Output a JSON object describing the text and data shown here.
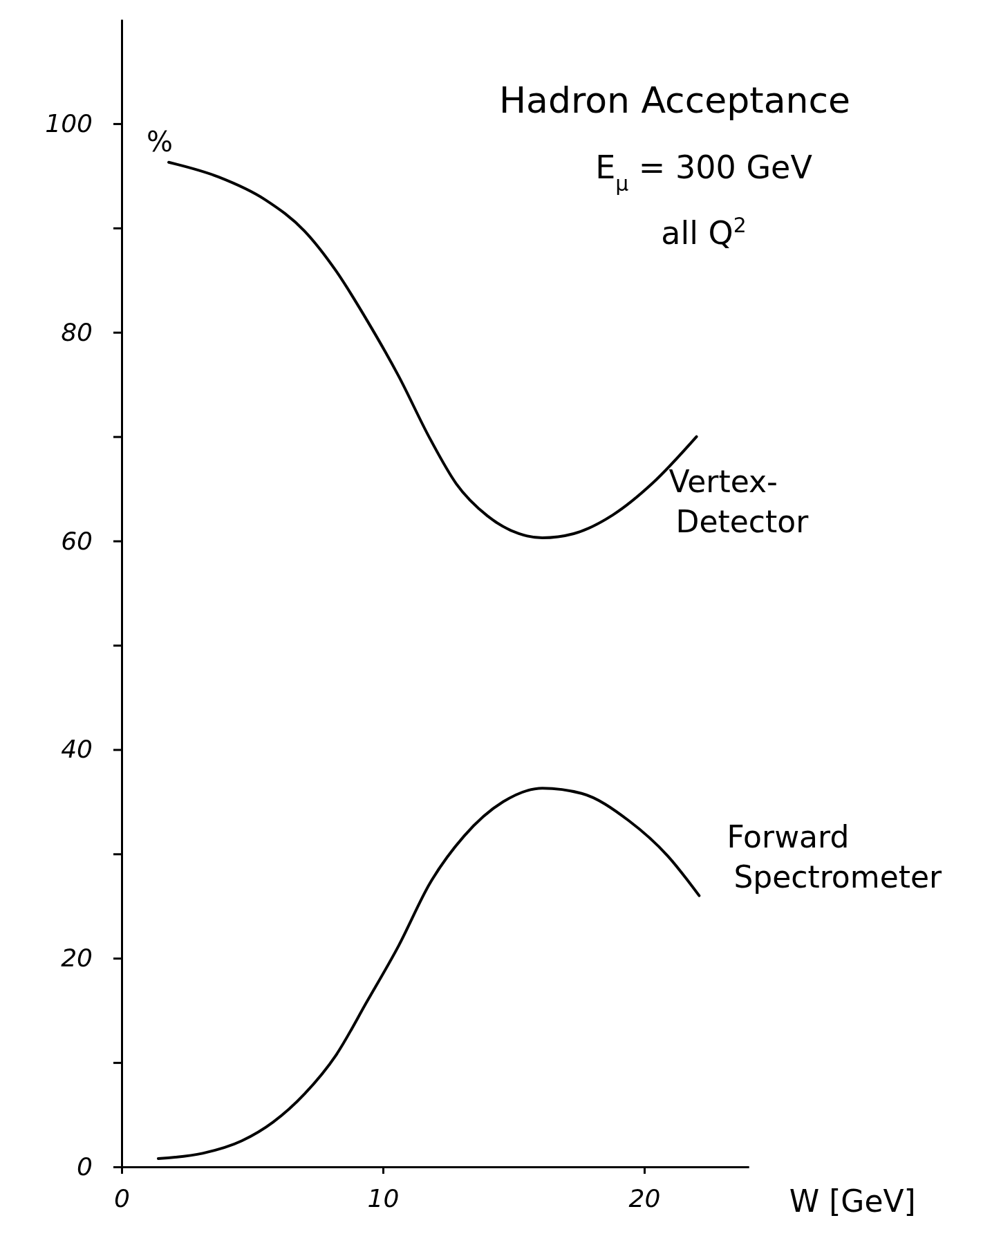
{
  "chart_data": {
    "type": "line",
    "title": "Hadron Acceptance",
    "annotations": [
      "E$_{μ}$ = 300 GeV",
      "all Q$^{2}$"
    ],
    "xlabel": "W [GeV]",
    "ylabel": "%",
    "xlim": [
      0,
      24
    ],
    "xticks": [
      0,
      10,
      20
    ],
    "ylim": [
      0,
      110
    ],
    "yticks": [
      0,
      {
        "value": 10,
        "label": null
      },
      20,
      {
        "value": 30,
        "label": null
      },
      40,
      {
        "value": 50,
        "label": null
      },
      60,
      {
        "value": 70,
        "label": null
      },
      80,
      {
        "value": 90,
        "label": null
      },
      100
    ],
    "grid": false,
    "marker": "none",
    "line_style": "solid",
    "series": [
      {
        "name": "Vertex-Detector",
        "color": "#000000",
        "x": [
          1.8,
          3.7,
          5.5,
          7.0,
          8.2,
          9.4,
          10.6,
          11.8,
          12.8,
          14.0,
          15.2,
          16.1,
          17.3,
          18.8,
          20.3,
          22.0
        ],
        "values": [
          96.3,
          94.9,
          92.7,
          89.7,
          85.9,
          81.1,
          75.8,
          69.8,
          65.5,
          62.4,
          60.7,
          60.3,
          60.7,
          62.5,
          65.5,
          70.0
        ]
      },
      {
        "name": "Forward Spectrometer",
        "color": "#000000",
        "x": [
          1.4,
          3.1,
          4.6,
          5.8,
          7.0,
          8.2,
          9.4,
          10.6,
          11.8,
          13.1,
          14.6,
          16.1,
          17.6,
          19.4,
          20.9,
          22.1
        ],
        "values": [
          0.8,
          1.3,
          2.5,
          4.3,
          7.0,
          10.7,
          15.9,
          21.2,
          27.2,
          31.7,
          35.0,
          36.3,
          35.8,
          33.2,
          29.8,
          26.0
        ]
      }
    ]
  }
}
